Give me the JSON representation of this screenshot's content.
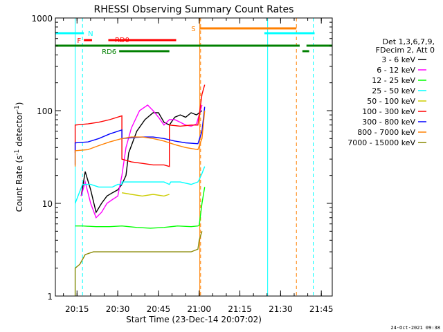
{
  "chart_data": {
    "type": "line",
    "title": "RHESSI Observing Summary Count Rates",
    "xlabel": "Start Time (23-Dec-14 20:07:02)",
    "ylabel": "Count Rate (s",
    "ylabel_sup1": "-1",
    "ylabel_mid": " detector",
    "ylabel_sup2": "-1",
    "ylabel_end": ")",
    "yscale": "log",
    "ylim": [
      1,
      1000
    ],
    "xlim_minutes": [
      0,
      102
    ],
    "x_unit": "minutes after 20:07:02",
    "x_ticks": [
      {
        "label": "20:15",
        "t": 7.97
      },
      {
        "label": "20:30",
        "t": 22.97
      },
      {
        "label": "20:45",
        "t": 37.97
      },
      {
        "label": "21:00",
        "t": 52.97
      },
      {
        "label": "21:15",
        "t": 67.97
      },
      {
        "label": "21:30",
        "t": 82.97
      },
      {
        "label": "21:45",
        "t": 97.97
      }
    ],
    "y_ticks": [
      {
        "label": "1",
        "v": 1
      },
      {
        "label": "10",
        "v": 10
      },
      {
        "label": "100",
        "v": 100
      },
      {
        "label": "1000",
        "v": 1000
      }
    ],
    "legend_header": [
      "Det 1,3,6,7,9,",
      "FDecim 2, Att 0"
    ],
    "series": [
      {
        "name": "3 - 6 keV",
        "color": "#000000",
        "points": [
          [
            9.5,
            12
          ],
          [
            11,
            22
          ],
          [
            13,
            14
          ],
          [
            15,
            8
          ],
          [
            17,
            10
          ],
          [
            19,
            12
          ],
          [
            21,
            13
          ],
          [
            23,
            14
          ],
          [
            24.5,
            16
          ],
          [
            26,
            20
          ],
          [
            27,
            35
          ],
          [
            30,
            60
          ],
          [
            33,
            80
          ],
          [
            36,
            95
          ],
          [
            38,
            95
          ],
          [
            40,
            75
          ],
          [
            42,
            70
          ],
          [
            44,
            85
          ],
          [
            46,
            90
          ],
          [
            48,
            85
          ],
          [
            50,
            95
          ],
          [
            52,
            90
          ],
          [
            54,
            100
          ]
        ]
      },
      {
        "name": "6 - 12 keV",
        "color": "#ff00ff",
        "points": [
          [
            9.5,
            12
          ],
          [
            11,
            17
          ],
          [
            13,
            10
          ],
          [
            15,
            7
          ],
          [
            17,
            8
          ],
          [
            19,
            10
          ],
          [
            21,
            11
          ],
          [
            23,
            12
          ],
          [
            24.5,
            20
          ],
          [
            26,
            40
          ],
          [
            28,
            65
          ],
          [
            31,
            100
          ],
          [
            34,
            115
          ],
          [
            36,
            100
          ],
          [
            38,
            85
          ],
          [
            40,
            70
          ],
          [
            42,
            80
          ],
          [
            44,
            80
          ],
          [
            46,
            75
          ],
          [
            48,
            70
          ],
          [
            50,
            68
          ],
          [
            52,
            72
          ],
          [
            54,
            115
          ]
        ]
      },
      {
        "name": "12 - 25 keV",
        "color": "#00ff00",
        "points": [
          [
            7.3,
            5.7
          ],
          [
            10,
            5.7
          ],
          [
            15,
            5.6
          ],
          [
            20,
            5.6
          ],
          [
            24.5,
            5.7
          ],
          [
            30,
            5.5
          ],
          [
            35,
            5.4
          ],
          [
            40,
            5.5
          ],
          [
            45,
            5.7
          ],
          [
            50,
            5.6
          ],
          [
            52.5,
            5.7
          ],
          [
            53,
            5.8
          ],
          [
            54,
            10
          ],
          [
            55,
            15
          ]
        ]
      },
      {
        "name": "25 - 50 keV",
        "color": "#00ffff",
        "points": [
          [
            7.3,
            10
          ],
          [
            10,
            16
          ],
          [
            13,
            16
          ],
          [
            16,
            15
          ],
          [
            19,
            15
          ],
          [
            21,
            15
          ],
          [
            23,
            16
          ],
          [
            24.5,
            16
          ],
          [
            24.5,
            17
          ],
          [
            28,
            17
          ],
          [
            32,
            17
          ],
          [
            36,
            17
          ],
          [
            40,
            17
          ],
          [
            42,
            16
          ],
          [
            42.5,
            17
          ],
          [
            46,
            17
          ],
          [
            50,
            16
          ],
          [
            52.5,
            17
          ],
          [
            53,
            18
          ],
          [
            54,
            21
          ],
          [
            55,
            25
          ]
        ]
      },
      {
        "name": "50 - 100 keV",
        "color": "#cccc00",
        "points": [
          [
            24.5,
            13
          ],
          [
            28,
            12.5
          ],
          [
            32,
            12
          ],
          [
            36,
            12.5
          ],
          [
            40,
            12
          ],
          [
            42,
            12.5
          ]
        ]
      },
      {
        "name": "100 - 300 keV",
        "color": "#ff0000",
        "points": [
          [
            7.3,
            35
          ],
          [
            7.3,
            70
          ],
          [
            12,
            72
          ],
          [
            16,
            75
          ],
          [
            20,
            80
          ],
          [
            24.5,
            88
          ],
          [
            24.5,
            30
          ],
          [
            28,
            28
          ],
          [
            32,
            27
          ],
          [
            36,
            26
          ],
          [
            40,
            26
          ],
          [
            42,
            25
          ],
          [
            42,
            70
          ],
          [
            46,
            68
          ],
          [
            50,
            70
          ],
          [
            52.5,
            70
          ],
          [
            53,
            90
          ],
          [
            54,
            150
          ],
          [
            55,
            190
          ]
        ]
      },
      {
        "name": "300 - 800 keV",
        "color": "#0000ff",
        "points": [
          [
            7.3,
            26
          ],
          [
            7.3,
            45
          ],
          [
            12,
            46
          ],
          [
            16,
            50
          ],
          [
            20,
            56
          ],
          [
            24.5,
            62
          ],
          [
            24.5,
            50
          ],
          [
            28,
            51
          ],
          [
            32,
            52
          ],
          [
            36,
            52
          ],
          [
            40,
            50
          ],
          [
            44,
            47
          ],
          [
            48,
            45
          ],
          [
            52.5,
            44
          ],
          [
            54,
            60
          ],
          [
            55,
            110
          ]
        ]
      },
      {
        "name": "800 - 7000 keV",
        "color": "#ff8000",
        "points": [
          [
            7.3,
            25
          ],
          [
            7.3,
            37
          ],
          [
            12,
            38
          ],
          [
            16,
            42
          ],
          [
            20,
            46
          ],
          [
            24.5,
            50
          ],
          [
            28,
            52
          ],
          [
            32,
            52
          ],
          [
            36,
            50
          ],
          [
            40,
            47
          ],
          [
            44,
            43
          ],
          [
            48,
            40
          ],
          [
            52.5,
            38
          ],
          [
            54,
            50
          ],
          [
            55,
            100
          ]
        ]
      },
      {
        "name": "7000 - 15000 keV",
        "color": "#888800",
        "points": [
          [
            7.3,
            1
          ],
          [
            7.3,
            2
          ],
          [
            9,
            2.2
          ],
          [
            11,
            2.8
          ],
          [
            14,
            3
          ],
          [
            18,
            3
          ],
          [
            22,
            3
          ],
          [
            26,
            3
          ],
          [
            30,
            3
          ],
          [
            34,
            3
          ],
          [
            38,
            3
          ],
          [
            42,
            3
          ],
          [
            46,
            3
          ],
          [
            50,
            3
          ],
          [
            52.5,
            3.2
          ],
          [
            53,
            4
          ],
          [
            54,
            5
          ]
        ]
      }
    ],
    "vlines": [
      {
        "t": 0.0,
        "color": "#00ffff",
        "style": "solid"
      },
      {
        "t": 7.3,
        "color": "#00ffff",
        "style": "solid"
      },
      {
        "t": 10.0,
        "color": "#00ffff",
        "style": "dashed"
      },
      {
        "t": 53.2,
        "color": "#ff8000",
        "style": "solid"
      },
      {
        "t": 53.5,
        "color": "#ff8000",
        "style": "dashed"
      },
      {
        "t": 78.2,
        "color": "#00ffff",
        "style": "solid"
      },
      {
        "t": 88.8,
        "color": "#ff8000",
        "style": "dashed"
      },
      {
        "t": 95.0,
        "color": "#00ffff",
        "style": "dashed"
      }
    ],
    "flag_bars": [
      {
        "label": "N",
        "color": "#00ffff",
        "y": 1,
        "segments": [
          [
            0,
            10.5
          ],
          [
            77,
            95.5
          ]
        ]
      },
      {
        "label": "S",
        "color": "#ff8000",
        "y": 0,
        "segments": [
          [
            53.2,
            88.8
          ]
        ]
      },
      {
        "label": "F",
        "color": "#ff0000",
        "y": 2,
        "segments": [
          [
            10.5,
            13.5
          ]
        ]
      },
      {
        "label": "RD0",
        "color": "#ff0000",
        "y": 2,
        "segments": [
          [
            19.5,
            44.5
          ]
        ]
      },
      {
        "label": "",
        "color": "#008000",
        "y": 3,
        "segments": [
          [
            0,
            90
          ],
          [
            92.5,
            102
          ]
        ]
      },
      {
        "label": "RD6",
        "color": "#008000",
        "y": 4,
        "segments": [
          [
            23.5,
            42
          ]
        ]
      },
      {
        "label": "",
        "color": "#008000",
        "y": 4,
        "segments": [
          [
            91,
            93.5
          ]
        ]
      }
    ]
  },
  "footer": {
    "timestamp": "24-Oct-2021 09:38"
  }
}
